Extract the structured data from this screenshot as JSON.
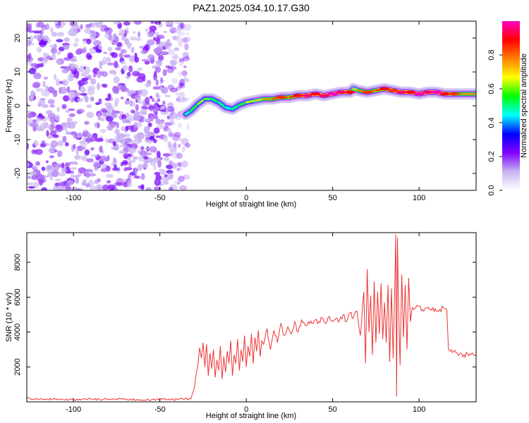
{
  "title": "PAZ1.2025.034.10.17.G30",
  "chart_data": [
    {
      "type": "heatmap",
      "title": "PAZ1.2025.034.10.17.G30",
      "xlabel": "Height of straight line (km)",
      "ylabel": "Frequency (Hz)",
      "xlim": [
        -127,
        133
      ],
      "ylim": [
        -25,
        25
      ],
      "xticks": [
        -100,
        -50,
        0,
        50,
        100
      ],
      "xtick_labels": [
        "-100",
        "-50",
        "0",
        "50",
        "100"
      ],
      "yticks": [
        -20,
        -10,
        0,
        10,
        20
      ],
      "ytick_labels": [
        "-20",
        "-10",
        "0",
        "10",
        "20"
      ],
      "noise_region_x": [
        -127,
        -36
      ],
      "ridge": {
        "x": [
          -35,
          -32,
          -28,
          -24,
          -20,
          -16,
          -12,
          -8,
          -4,
          0,
          5,
          10,
          15,
          20,
          25,
          30,
          35,
          40,
          45,
          50,
          55,
          60,
          62,
          65,
          70,
          75,
          80,
          85,
          90,
          95,
          100,
          105,
          110,
          115,
          120,
          125,
          133
        ],
        "y": [
          -2.5,
          -1.5,
          0.5,
          2.0,
          2.0,
          1.0,
          -0.5,
          -1.0,
          0.2,
          1.0,
          1.5,
          2.0,
          2.0,
          2.5,
          2.5,
          3.0,
          3.0,
          3.5,
          3.0,
          3.5,
          4.0,
          4.0,
          5.0,
          4.5,
          4.0,
          4.5,
          5.0,
          4.5,
          4.0,
          4.0,
          3.5,
          4.0,
          4.0,
          3.5,
          3.5,
          3.5,
          3.5
        ],
        "peak_amplitude": [
          0.45,
          0.5,
          0.6,
          0.65,
          0.55,
          0.5,
          0.5,
          0.45,
          0.55,
          0.6,
          0.7,
          0.75,
          0.8,
          0.85,
          0.8,
          0.9,
          0.95,
          0.9,
          0.95,
          1.0,
          0.95,
          0.9,
          0.7,
          0.75,
          0.85,
          0.8,
          0.9,
          0.85,
          0.95,
          0.9,
          1.0,
          0.95,
          1.0,
          0.9,
          0.85,
          0.8,
          0.75
        ]
      },
      "colorbar": {
        "label": "Normalized spectral amplitude",
        "range": [
          0,
          1
        ],
        "ticks": [
          0.0,
          0.2,
          0.4,
          0.6,
          0.8
        ],
        "tick_labels": [
          "0.0",
          "0.2",
          "0.4",
          "0.6",
          "0.8"
        ],
        "colormap": "rainbow",
        "stops": [
          "#ffffff",
          "#c8b4f0",
          "#8000ff",
          "#0000ff",
          "#00ffff",
          "#00ff00",
          "#ffff00",
          "#ff8000",
          "#ff0000",
          "#ff00c0"
        ]
      }
    },
    {
      "type": "line",
      "xlabel": "Height of straight line (km)",
      "ylabel": "SNR (10 * v/v)",
      "xlim": [
        -127,
        133
      ],
      "ylim": [
        0,
        9700
      ],
      "xticks": [
        -100,
        -50,
        0,
        50,
        100
      ],
      "xtick_labels": [
        "-100",
        "-50",
        "0",
        "50",
        "100"
      ],
      "yticks": [
        2000,
        4000,
        6000,
        8000
      ],
      "ytick_labels": [
        "2000",
        "4000",
        "6000",
        "8000"
      ],
      "color": "#ee3333",
      "series": [
        {
          "x": [
            -127,
            -120,
            -110,
            -100,
            -90,
            -80,
            -70,
            -60,
            -50,
            -40,
            -32,
            -30,
            -29,
            -28,
            -27,
            -26,
            -25,
            -24,
            -23,
            -22,
            -21,
            -20,
            -19,
            -18,
            -17,
            -16,
            -15,
            -14,
            -13,
            -12,
            -11,
            -10,
            -9,
            -8,
            -7,
            -6,
            -5,
            -4,
            -3,
            -2,
            -1,
            0,
            1,
            2,
            3,
            4,
            5,
            6,
            7,
            8,
            9,
            10,
            12,
            14,
            16,
            18,
            20,
            22,
            24,
            26,
            28,
            30,
            32,
            34,
            36,
            38,
            40,
            42,
            44,
            46,
            48,
            50,
            52,
            54,
            56,
            58,
            60,
            62,
            64,
            66,
            68,
            69,
            70,
            71,
            72,
            73,
            74,
            75,
            76,
            77,
            78,
            79,
            80,
            81,
            82,
            83,
            84,
            85,
            86,
            86.5,
            87,
            87.5,
            88,
            89,
            90,
            91,
            92,
            93,
            94,
            95,
            96,
            97,
            98,
            100,
            102,
            104,
            106,
            108,
            110,
            112,
            114,
            116,
            116.5,
            117,
            118,
            120,
            122,
            124,
            126,
            128,
            130,
            133
          ],
          "y": [
            200,
            150,
            180,
            120,
            170,
            130,
            160,
            110,
            150,
            140,
            180,
            800,
            1600,
            2100,
            3100,
            2500,
            3400,
            2000,
            3300,
            1500,
            2800,
            1900,
            3000,
            1400,
            2400,
            1800,
            3200,
            1300,
            2600,
            1700,
            2900,
            2200,
            3500,
            1500,
            2700,
            2200,
            3600,
            1800,
            3000,
            2300,
            3800,
            2000,
            3200,
            2600,
            3900,
            2200,
            3700,
            2900,
            4100,
            2600,
            3500,
            3300,
            4200,
            3000,
            4100,
            3400,
            4500,
            3800,
            4300,
            3900,
            4600,
            4000,
            4700,
            4400,
            4600,
            4500,
            4700,
            4600,
            4800,
            4500,
            4900,
            4600,
            4800,
            4700,
            5000,
            4600,
            5100,
            4800,
            5200,
            3800,
            6300,
            2200,
            7600,
            4000,
            6100,
            2700,
            6900,
            3400,
            6300,
            3900,
            6800,
            3600,
            5700,
            3400,
            6700,
            2300,
            6500,
            2500,
            7000,
            9600,
            300,
            9400,
            6000,
            2100,
            7300,
            3700,
            6700,
            3000,
            7100,
            4600,
            5400,
            5300,
            5400,
            5500,
            5300,
            5400,
            5300,
            5400,
            5200,
            5300,
            5400,
            5300,
            4200,
            3000,
            2900,
            2900,
            2800,
            2800,
            2700,
            2750,
            2700,
            2700
          ]
        }
      ]
    }
  ]
}
